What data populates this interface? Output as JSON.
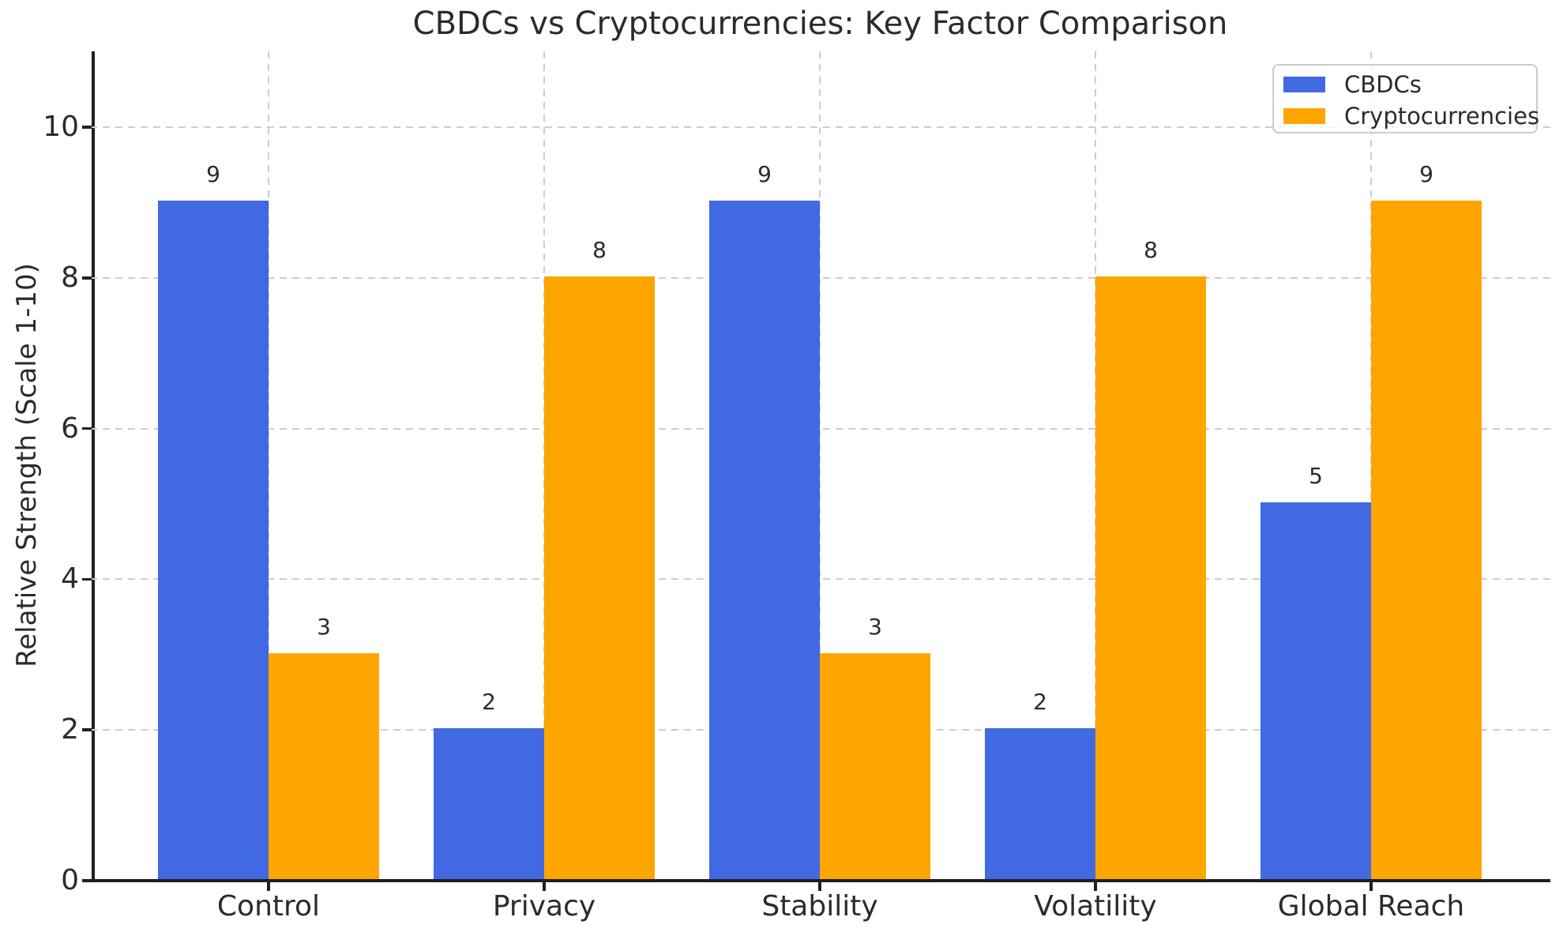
{
  "chart_data": {
    "type": "bar",
    "title": "CBDCs vs Cryptocurrencies: Key Factor Comparison",
    "xlabel": "",
    "ylabel": "Relative Strength (Scale 1-10)",
    "categories": [
      "Control",
      "Privacy",
      "Stability",
      "Volatility",
      "Global Reach"
    ],
    "series": [
      {
        "name": "CBDCs",
        "color": "#4169E1",
        "values": [
          9,
          2,
          9,
          2,
          5
        ]
      },
      {
        "name": "Cryptocurrencies",
        "color": "#FFA500",
        "values": [
          3,
          8,
          3,
          8,
          9
        ]
      }
    ],
    "value_labels": [
      [
        "9",
        "2",
        "9",
        "2",
        "5"
      ],
      [
        "3",
        "8",
        "3",
        "8",
        "9"
      ]
    ],
    "yticks": [
      "0",
      "2",
      "4",
      "6",
      "8",
      "10"
    ],
    "ylim": [
      0,
      11
    ],
    "grid": "dashed, horizontal and vertical",
    "legend_position": "upper right",
    "spines": "left and bottom only"
  }
}
